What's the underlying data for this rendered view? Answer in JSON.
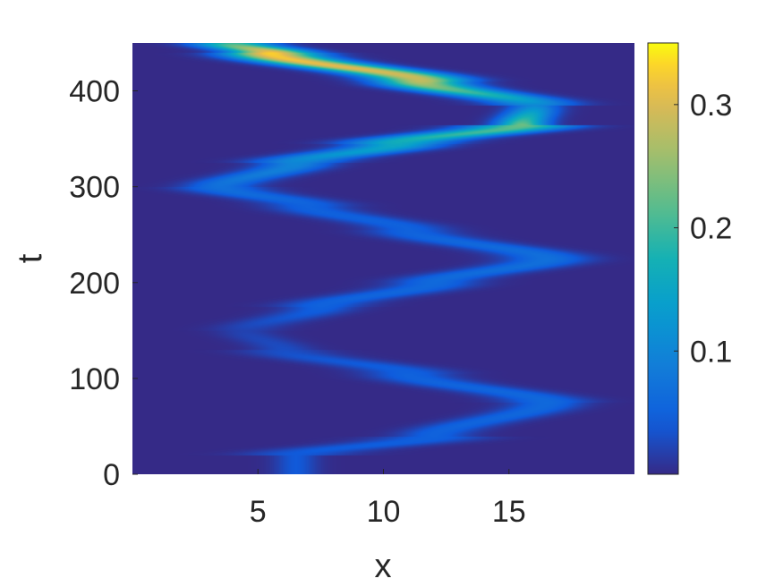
{
  "chart_data": {
    "type": "heatmap",
    "title": "",
    "xlabel": "x",
    "ylabel": "t",
    "xlim": [
      0,
      20
    ],
    "ylim": [
      0,
      450
    ],
    "xticks": [
      5,
      10,
      15
    ],
    "yticks": [
      0,
      100,
      200,
      300,
      400
    ],
    "colormap": "parula",
    "grid": false,
    "colorbar": {
      "position": "right",
      "range": [
        0,
        0.35
      ],
      "ticks": [
        0.1,
        0.2,
        0.3
      ]
    },
    "trajectory": [
      {
        "t": 20,
        "x": 6.5,
        "peak": 0.04
      },
      {
        "t": 40,
        "x": 12.0,
        "peak": 0.05
      },
      {
        "t": 75,
        "x": 16.5,
        "peak": 0.06
      },
      {
        "t": 105,
        "x": 11.0,
        "peak": 0.05
      },
      {
        "t": 130,
        "x": 6.0,
        "peak": 0.03
      },
      {
        "t": 150,
        "x": 4.5,
        "peak": 0.02
      },
      {
        "t": 175,
        "x": 7.5,
        "peak": 0.05
      },
      {
        "t": 200,
        "x": 12.0,
        "peak": 0.06
      },
      {
        "t": 225,
        "x": 16.5,
        "peak": 0.07
      },
      {
        "t": 255,
        "x": 11.0,
        "peak": 0.05
      },
      {
        "t": 280,
        "x": 7.0,
        "peak": 0.05
      },
      {
        "t": 300,
        "x": 3.5,
        "peak": 0.07
      },
      {
        "t": 325,
        "x": 6.5,
        "peak": 0.1
      },
      {
        "t": 345,
        "x": 10.5,
        "peak": 0.16
      },
      {
        "t": 365,
        "x": 15.5,
        "peak": 0.23
      },
      {
        "t": 385,
        "x": 16.0,
        "peak": 0.1
      },
      {
        "t": 410,
        "x": 11.5,
        "peak": 0.28
      },
      {
        "t": 440,
        "x": 5.5,
        "peak": 0.33
      },
      {
        "t": 450,
        "x": 4.0,
        "peak": 0.2
      }
    ]
  }
}
